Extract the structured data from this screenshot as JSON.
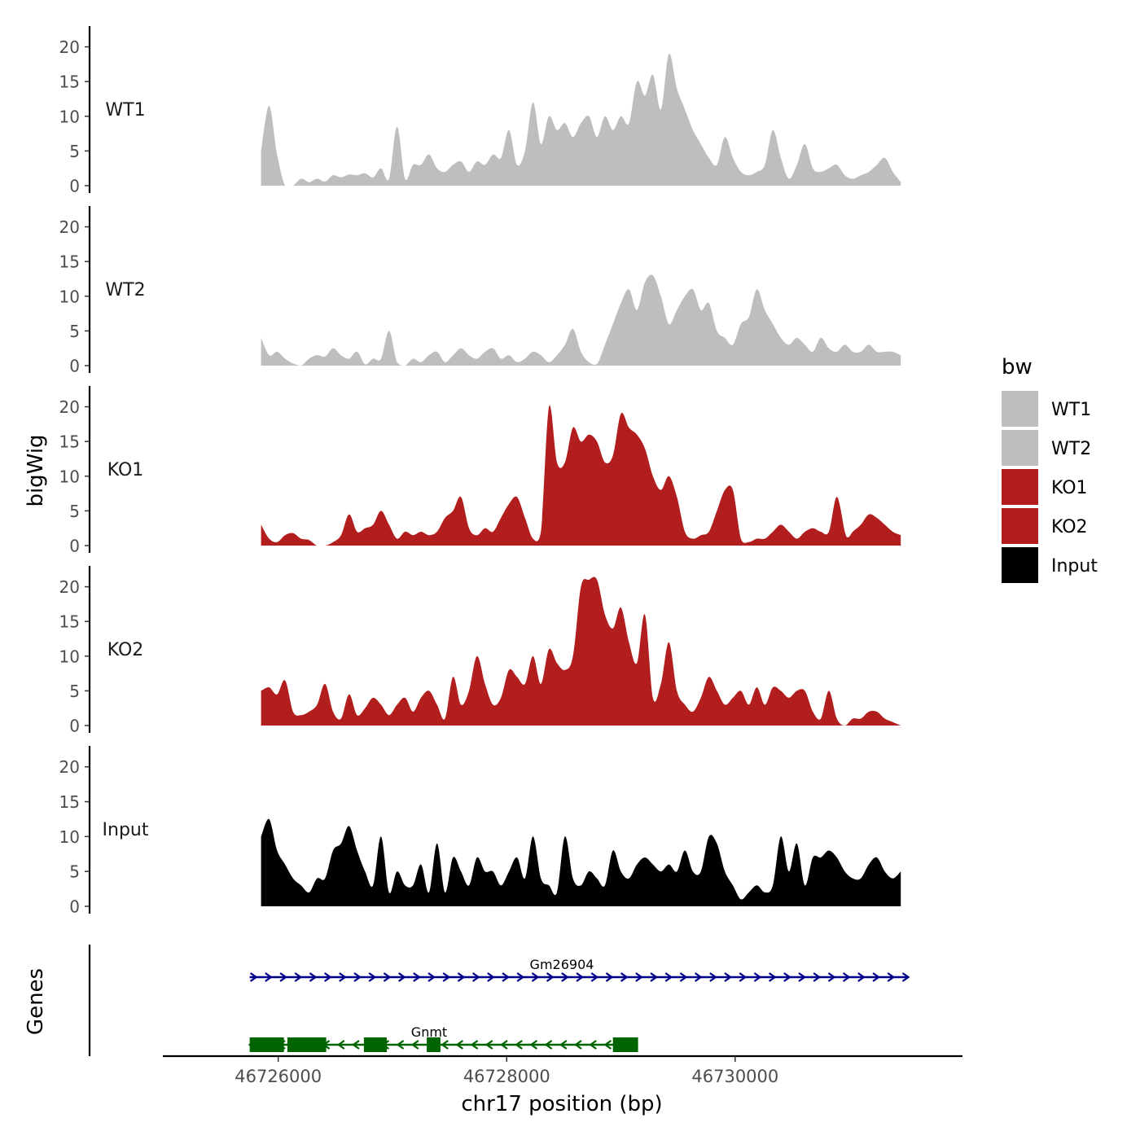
{
  "chart_data": {
    "type": "area",
    "title": "",
    "ylabel": "bigWig",
    "xlabel": "chr17 position (bp)",
    "genes_label": "Genes",
    "ylim": [
      0,
      23
    ],
    "xlim": [
      46724990,
      46731990
    ],
    "yticks": [
      0,
      5,
      10,
      15,
      20
    ],
    "ytick_labels": [
      "0",
      "5",
      "10",
      "15",
      "20"
    ],
    "xticks": [
      46726000,
      46728000,
      46730000
    ],
    "xtick_labels": [
      "46726000",
      "46728000",
      "46730000"
    ],
    "legend": {
      "title": "bw",
      "position": "right",
      "entries": [
        {
          "label": "WT1",
          "color": "#bebebe"
        },
        {
          "label": "WT2",
          "color": "#bebebe"
        },
        {
          "label": "KO1",
          "color": "#b21e1e"
        },
        {
          "label": "KO2",
          "color": "#b21e1e"
        },
        {
          "label": "Input",
          "color": "#000000"
        }
      ]
    },
    "series": [
      {
        "name": "WT1",
        "color": "#bebebe",
        "x": [
          46725850,
          46725920,
          46725990,
          46726060,
          46726130,
          46726200,
          46726270,
          46726340,
          46726410,
          46726480,
          46726550,
          46726620,
          46726690,
          46726760,
          46726830,
          46726900,
          46726970,
          46727040,
          46727110,
          46727180,
          46727250,
          46727320,
          46727390,
          46727460,
          46727530,
          46727600,
          46727670,
          46727740,
          46727810,
          46727880,
          46727950,
          46728020,
          46728090,
          46728160,
          46728230,
          46728300,
          46728370,
          46728440,
          46728510,
          46728580,
          46728650,
          46728720,
          46728790,
          46728860,
          46728930,
          46729000,
          46729070,
          46729140,
          46729210,
          46729280,
          46729350,
          46729420,
          46729490,
          46729560,
          46729630,
          46729700,
          46729770,
          46729840,
          46729910,
          46729980,
          46730050,
          46730120,
          46730190,
          46730260,
          46730330,
          46730400,
          46730470,
          46730540,
          46730610,
          46730680,
          46730750,
          46730820,
          46730890,
          46730960,
          46731030,
          46731100,
          46731170,
          46731240,
          46731310,
          46731380,
          46731450
        ],
        "values": [
          5,
          11.5,
          4.5,
          0,
          0,
          1,
          0.5,
          1,
          0.6,
          1.5,
          1.2,
          1.6,
          1.5,
          1.8,
          1.2,
          2.5,
          1,
          8.5,
          1,
          3,
          3,
          4.5,
          2.5,
          2,
          3,
          3.5,
          2,
          3.5,
          3,
          4.5,
          4,
          8,
          3,
          5,
          12,
          6,
          10,
          8,
          9,
          7,
          9,
          10,
          7,
          10,
          8,
          10,
          9,
          15,
          13,
          16,
          11,
          19,
          14,
          11,
          8,
          6,
          4,
          3,
          7,
          4,
          2,
          1.5,
          2,
          3,
          8,
          4,
          1,
          3,
          6,
          2.5,
          2,
          2.5,
          3,
          1.5,
          1,
          1.5,
          2,
          3,
          4,
          2,
          0.5
        ]
      },
      {
        "name": "WT2",
        "color": "#bebebe",
        "x": [
          46725850,
          46725920,
          46725990,
          46726060,
          46726130,
          46726200,
          46726270,
          46726340,
          46726410,
          46726480,
          46726550,
          46726620,
          46726690,
          46726760,
          46726830,
          46726900,
          46726970,
          46727040,
          46727110,
          46727180,
          46727250,
          46727320,
          46727390,
          46727460,
          46727530,
          46727600,
          46727670,
          46727740,
          46727810,
          46727880,
          46727950,
          46728020,
          46728090,
          46728160,
          46728230,
          46728300,
          46728370,
          46728440,
          46728510,
          46728580,
          46728650,
          46728720,
          46728790,
          46728860,
          46728930,
          46729000,
          46729070,
          46729140,
          46729210,
          46729280,
          46729350,
          46729420,
          46729490,
          46729560,
          46729630,
          46729700,
          46729770,
          46729840,
          46729910,
          46729980,
          46730050,
          46730120,
          46730190,
          46730260,
          46730330,
          46730400,
          46730470,
          46730540,
          46730610,
          46730680,
          46730750,
          46730820,
          46730890,
          46730960,
          46731030,
          46731100,
          46731170,
          46731240,
          46731310,
          46731380,
          46731450
        ],
        "values": [
          4,
          1.5,
          2,
          1,
          0.3,
          0,
          1,
          1.5,
          1.3,
          2.5,
          1.5,
          1,
          2,
          0.2,
          1,
          1,
          5,
          0.5,
          0,
          1,
          0.5,
          1.5,
          2,
          0.5,
          1.5,
          2.5,
          1.5,
          1,
          2,
          2.5,
          1,
          1.5,
          0.5,
          1,
          2,
          1.5,
          0.5,
          1.5,
          3,
          5.3,
          2,
          0.5,
          0.2,
          3,
          6,
          9,
          11,
          8,
          12,
          13,
          10,
          6,
          8,
          10,
          11,
          8,
          9,
          5,
          4,
          3,
          6,
          7,
          11,
          8,
          6,
          4,
          3,
          4,
          3,
          2,
          4,
          2.5,
          2,
          3,
          2,
          2,
          3,
          2,
          2,
          2,
          1.5
        ]
      },
      {
        "name": "KO1",
        "color": "#b21e1e",
        "x": [
          46725850,
          46725920,
          46725990,
          46726060,
          46726130,
          46726200,
          46726270,
          46726340,
          46726410,
          46726480,
          46726550,
          46726620,
          46726690,
          46726760,
          46726830,
          46726900,
          46726970,
          46727040,
          46727110,
          46727180,
          46727250,
          46727320,
          46727390,
          46727460,
          46727530,
          46727600,
          46727670,
          46727740,
          46727810,
          46727880,
          46727950,
          46728020,
          46728090,
          46728160,
          46728230,
          46728300,
          46728370,
          46728440,
          46728510,
          46728580,
          46728650,
          46728720,
          46728790,
          46728860,
          46728930,
          46729000,
          46729070,
          46729140,
          46729210,
          46729280,
          46729350,
          46729420,
          46729490,
          46729560,
          46729630,
          46729700,
          46729770,
          46729840,
          46729910,
          46729980,
          46730050,
          46730120,
          46730190,
          46730260,
          46730330,
          46730400,
          46730470,
          46730540,
          46730610,
          46730680,
          46730750,
          46730820,
          46730890,
          46730960,
          46730990,
          46731030,
          46731100,
          46731170,
          46731240,
          46731310,
          46731380,
          46731450
        ],
        "values": [
          3,
          1,
          0.5,
          1.5,
          1.8,
          1,
          0.8,
          0,
          0,
          0.5,
          1.5,
          4.5,
          2,
          2.5,
          3,
          5,
          3,
          1,
          2,
          1.5,
          2,
          1.5,
          2,
          4,
          5,
          7,
          2.5,
          1.5,
          2.5,
          2,
          4,
          6,
          7,
          4,
          1,
          2,
          20,
          12,
          12,
          17,
          15,
          16,
          15,
          12,
          13,
          19,
          17,
          16,
          14,
          10,
          8,
          10,
          7,
          2,
          1,
          1.5,
          2,
          5,
          8,
          8,
          1,
          0.5,
          1,
          1,
          2,
          3,
          2,
          1,
          2,
          2.5,
          2,
          2,
          7,
          2,
          1.2,
          2,
          3,
          4.5,
          4,
          3,
          2,
          1.5
        ]
      },
      {
        "name": "KO2",
        "color": "#b21e1e",
        "x": [
          46725850,
          46725920,
          46725990,
          46726060,
          46726130,
          46726200,
          46726270,
          46726340,
          46726410,
          46726480,
          46726550,
          46726620,
          46726690,
          46726760,
          46726830,
          46726900,
          46726970,
          46727040,
          46727110,
          46727180,
          46727250,
          46727320,
          46727390,
          46727460,
          46727530,
          46727600,
          46727670,
          46727740,
          46727810,
          46727880,
          46727950,
          46728020,
          46728090,
          46728160,
          46728230,
          46728300,
          46728370,
          46728440,
          46728510,
          46728580,
          46728650,
          46728720,
          46728790,
          46728860,
          46728930,
          46729000,
          46729070,
          46729140,
          46729210,
          46729280,
          46729350,
          46729420,
          46729490,
          46729560,
          46729630,
          46729700,
          46729770,
          46729840,
          46729910,
          46729980,
          46730050,
          46730120,
          46730190,
          46730260,
          46730330,
          46730400,
          46730470,
          46730540,
          46730610,
          46730680,
          46730750,
          46730820,
          46730890,
          46730960,
          46731030,
          46731100,
          46731170,
          46731240,
          46731310,
          46731380,
          46731450
        ],
        "values": [
          5,
          5.5,
          4.5,
          6.5,
          2,
          1.5,
          2,
          3,
          6,
          2,
          1,
          4.5,
          1.5,
          2.5,
          4,
          3,
          1.5,
          3,
          4,
          2,
          4,
          5,
          3,
          1,
          7,
          3,
          5,
          10,
          6,
          3,
          4,
          8,
          7,
          6,
          10,
          6,
          11,
          9,
          8,
          10,
          20,
          21,
          21,
          16,
          14,
          17,
          12,
          9,
          16,
          4,
          6,
          12,
          5,
          3,
          2,
          4,
          7,
          5,
          3,
          4,
          5,
          3,
          5.5,
          3,
          5.5,
          5,
          4,
          5,
          5,
          2,
          1,
          5,
          1,
          0,
          1,
          1,
          2,
          2,
          1,
          0.5,
          0
        ]
      },
      {
        "name": "Input",
        "color": "#000000",
        "x": [
          46725850,
          46725920,
          46725990,
          46726060,
          46726130,
          46726200,
          46726270,
          46726340,
          46726410,
          46726480,
          46726550,
          46726620,
          46726690,
          46726760,
          46726830,
          46726900,
          46726970,
          46727040,
          46727110,
          46727180,
          46727250,
          46727320,
          46727390,
          46727460,
          46727530,
          46727600,
          46727670,
          46727740,
          46727810,
          46727880,
          46727950,
          46728020,
          46728090,
          46728160,
          46728230,
          46728300,
          46728370,
          46728440,
          46728510,
          46728580,
          46728650,
          46728720,
          46728790,
          46728860,
          46728930,
          46729000,
          46729070,
          46729140,
          46729210,
          46729280,
          46729350,
          46729420,
          46729490,
          46729560,
          46729630,
          46729700,
          46729770,
          46729840,
          46729910,
          46729980,
          46730050,
          46730120,
          46730190,
          46730260,
          46730330,
          46730400,
          46730470,
          46730540,
          46730610,
          46730680,
          46730750,
          46730820,
          46730890,
          46730960,
          46731030,
          46731100,
          46731170,
          46731240,
          46731310,
          46731380,
          46731450
        ],
        "values": [
          10,
          12.5,
          8,
          6,
          4,
          3,
          2,
          4,
          4,
          8,
          9,
          11.5,
          8,
          5,
          3,
          10,
          2,
          5,
          3,
          3,
          6,
          2,
          9,
          2,
          7,
          5,
          3,
          7,
          5,
          5,
          3,
          5,
          7,
          4,
          10,
          4,
          3,
          2,
          10,
          4,
          3,
          5,
          4,
          3,
          8,
          5,
          4,
          6,
          7,
          6,
          5,
          6,
          5,
          8,
          5,
          5,
          10,
          9,
          5,
          3,
          1,
          2,
          3,
          2,
          3,
          10,
          5,
          9,
          3,
          7,
          7,
          8,
          7,
          5,
          4,
          4,
          6,
          7,
          5,
          4,
          5
        ]
      }
    ],
    "genes": [
      {
        "name": "Gm26904",
        "color": "#00008b",
        "start": 46725750,
        "end": 46731520,
        "strand": "+",
        "exons": []
      },
      {
        "name": "Gnmt",
        "color": "#006400",
        "start": 46725750,
        "end": 46729150,
        "strand": "-",
        "exons": [
          [
            46725750,
            46726050
          ],
          [
            46726080,
            46726420
          ],
          [
            46726750,
            46726950
          ],
          [
            46727300,
            46727420
          ],
          [
            46728930,
            46729150
          ]
        ]
      }
    ]
  }
}
